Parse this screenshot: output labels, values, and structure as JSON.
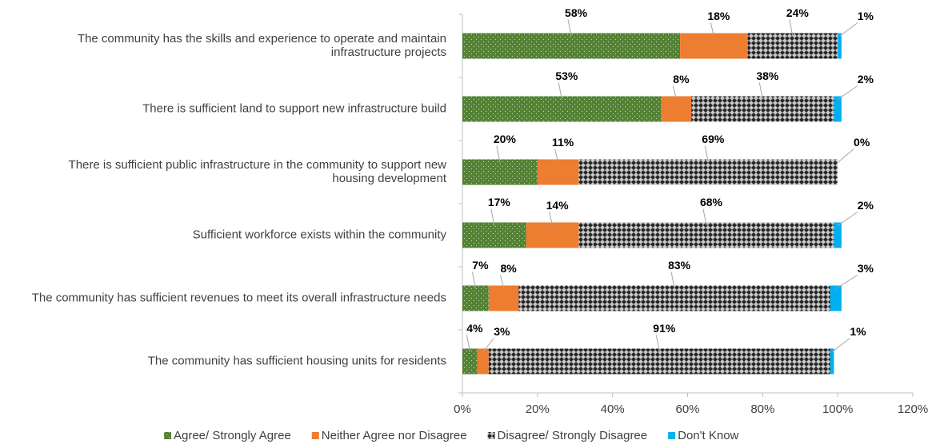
{
  "chart_data": {
    "type": "stacked-bar-horizontal",
    "categories": [
      "The community has the skills and experience to operate and maintain infrastructure projects",
      "There is sufficient land to support new infrastructure build",
      "There is sufficient public infrastructure in the community to support new housing development",
      "Sufficient workforce exists within the community",
      "The community has sufficient revenues to meet its overall infrastructure needs",
      "The community has sufficient housing units for residents"
    ],
    "series": [
      {
        "name": "Agree/ Strongly Agree",
        "color": "#548235",
        "values": [
          58,
          53,
          20,
          17,
          7,
          4
        ],
        "value_labels": [
          "58%",
          "53%",
          "20%",
          "17%",
          "7%",
          "4%"
        ]
      },
      {
        "name": "Neither Agree nor Disagree",
        "color": "#ed7d31",
        "values": [
          18,
          8,
          11,
          14,
          8,
          3
        ],
        "value_labels": [
          "18%",
          "8%",
          "11%",
          "14%",
          "8%",
          "3%"
        ]
      },
      {
        "name": "Disagree/ Strongly Disagree",
        "color": "#262626",
        "values": [
          24,
          38,
          69,
          68,
          83,
          91
        ],
        "value_labels": [
          "24%",
          "38%",
          "69%",
          "68%",
          "83%",
          "91%"
        ]
      },
      {
        "name": "Don't Know",
        "color": "#00b0f0",
        "values": [
          1,
          2,
          0,
          2,
          3,
          1
        ],
        "value_labels": [
          "1%",
          "2%",
          "0%",
          "2%",
          "3%",
          "1%"
        ]
      }
    ],
    "xlim": [
      0,
      120
    ],
    "xticks": [
      {
        "value": 0,
        "label": "0%"
      },
      {
        "value": 20,
        "label": "20%"
      },
      {
        "value": 40,
        "label": "40%"
      },
      {
        "value": 60,
        "label": "60%"
      },
      {
        "value": 80,
        "label": "80%"
      },
      {
        "value": 100,
        "label": "100%"
      },
      {
        "value": 120,
        "label": "120%"
      }
    ],
    "legend": "bottom"
  }
}
